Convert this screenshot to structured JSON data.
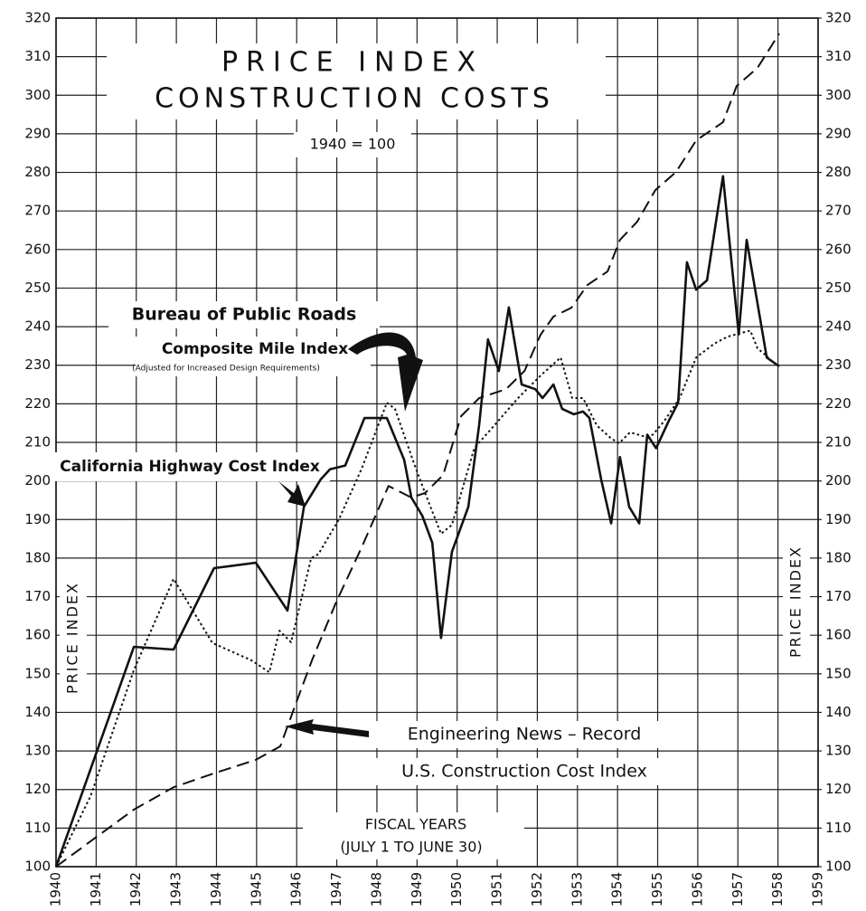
{
  "chart_data": {
    "type": "line",
    "title": [
      "PRICE INDEX",
      "CONSTRUCTION COSTS"
    ],
    "subtitle": "1940 = 100",
    "ylabel": "PRICE INDEX",
    "y2label": "PRICE INDEX",
    "xlabel": [
      "FISCAL YEARS",
      "(JULY 1 TO JUNE 30)"
    ],
    "annotations": [
      "Bureau of Public Roads",
      "(Adjusted for Increased Design Requirements)",
      "Engineering News – Record"
    ],
    "xlim": [
      1940,
      1959
    ],
    "xticks": [
      1940,
      1941,
      1942,
      1943,
      1944,
      1945,
      1946,
      1947,
      1948,
      1949,
      1950,
      1951,
      1952,
      1953,
      1954,
      1955,
      1956,
      1957,
      1958,
      1959
    ],
    "ylim": [
      100,
      320
    ],
    "yticks": [
      100,
      110,
      120,
      130,
      140,
      150,
      160,
      170,
      180,
      190,
      200,
      210,
      220,
      230,
      240,
      250,
      260,
      270,
      280,
      290,
      300,
      310,
      320
    ],
    "y2lim": [
      100,
      320
    ],
    "y2ticks": [
      100,
      110,
      120,
      130,
      140,
      150,
      160,
      170,
      180,
      190,
      200,
      210,
      220,
      230,
      240,
      250,
      260,
      270,
      280,
      290,
      300,
      310,
      320
    ],
    "grid": true,
    "series": [
      {
        "name": "California Highway Cost Index",
        "color": "#111111",
        "style": "solid",
        "x": [
          1940,
          1941.94,
          1942.93,
          1943.94,
          1944.98,
          1945.77,
          1946.18,
          1946.6,
          1946.83,
          1947.21,
          1947.69,
          1948.25,
          1948.68,
          1948.86,
          1949.13,
          1949.38,
          1949.6,
          1949.87,
          1950.28,
          1950.55,
          1950.77,
          1951.04,
          1951.29,
          1951.61,
          1951.95,
          1952.13,
          1952.4,
          1952.62,
          1952.91,
          1953.14,
          1953.3,
          1953.59,
          1953.84,
          1954.06,
          1954.29,
          1954.54,
          1954.74,
          1954.96,
          1955.28,
          1955.51,
          1955.73,
          1955.96,
          1956.23,
          1956.63,
          1957.02,
          1957.22,
          1957.72,
          1958.03
        ],
        "values": [
          100,
          157,
          156.3,
          177.4,
          178.8,
          166.4,
          193.3,
          200.4,
          203,
          204,
          216.3,
          216.3,
          205.5,
          195.7,
          191,
          184,
          159.3,
          181.6,
          193.3,
          214.6,
          236.7,
          228.5,
          245,
          225,
          223.8,
          221.5,
          225,
          218.7,
          217.3,
          218,
          216.3,
          200.4,
          189,
          206.2,
          193.3,
          189,
          212,
          208.5,
          215.6,
          220.3,
          256.7,
          249.6,
          252,
          279,
          238,
          262.5,
          232,
          229.7
        ]
      },
      {
        "name": "Composite Mile Index",
        "color": "#111111",
        "style": "dotted",
        "x": [
          1940,
          1940.86,
          1941.94,
          1942.93,
          1943.9,
          1944.87,
          1945.32,
          1945.57,
          1945.86,
          1946.36,
          1946.54,
          1947.05,
          1947.62,
          1948.25,
          1948.45,
          1948.91,
          1949.2,
          1949.6,
          1949.87,
          1950.43,
          1950.93,
          1951.52,
          1952.08,
          1952.58,
          1952.87,
          1953.14,
          1953.48,
          1953.84,
          1954.04,
          1954.31,
          1954.65,
          1954.88,
          1955.17,
          1955.55,
          1955.96,
          1956.41,
          1956.74,
          1957.31,
          1957.49,
          1957.76
        ],
        "values": [
          100,
          118.3,
          151,
          174.6,
          158,
          153.5,
          150.4,
          161.2,
          158.2,
          180,
          181,
          190,
          203.2,
          220.3,
          218.7,
          205,
          196.9,
          186.3,
          188.6,
          208.6,
          214.4,
          221.5,
          227.3,
          232,
          221.5,
          221.5,
          214.4,
          211,
          209.8,
          212.6,
          211.6,
          212,
          215.6,
          221.5,
          232,
          235.6,
          237.4,
          239,
          234.4,
          232
        ]
      },
      {
        "name": "U.S. Construction Cost Index",
        "color": "#111111",
        "style": "dashed",
        "x": [
          1940,
          1940.86,
          1941.94,
          1942.93,
          1943.94,
          1944.98,
          1945.59,
          1946.04,
          1946.38,
          1946.99,
          1947.62,
          1948.29,
          1948.86,
          1949.2,
          1949.65,
          1950.1,
          1950.55,
          1951.22,
          1951.68,
          1952.08,
          1952.4,
          1952.85,
          1953.25,
          1953.75,
          1954.06,
          1954.49,
          1954.94,
          1955.46,
          1955.96,
          1956.63,
          1956.97,
          1957.49,
          1958.03
        ],
        "values": [
          100,
          106.6,
          114.8,
          120.6,
          124.2,
          127.7,
          131.2,
          144,
          153.5,
          168.7,
          182.8,
          198.7,
          195.7,
          196.9,
          201.5,
          216.8,
          221.5,
          223.8,
          228.5,
          237.9,
          242.6,
          244.9,
          250.8,
          254.3,
          262.5,
          267.2,
          275.4,
          280.1,
          288.3,
          293,
          302.4,
          307.1,
          316
        ]
      }
    ]
  }
}
